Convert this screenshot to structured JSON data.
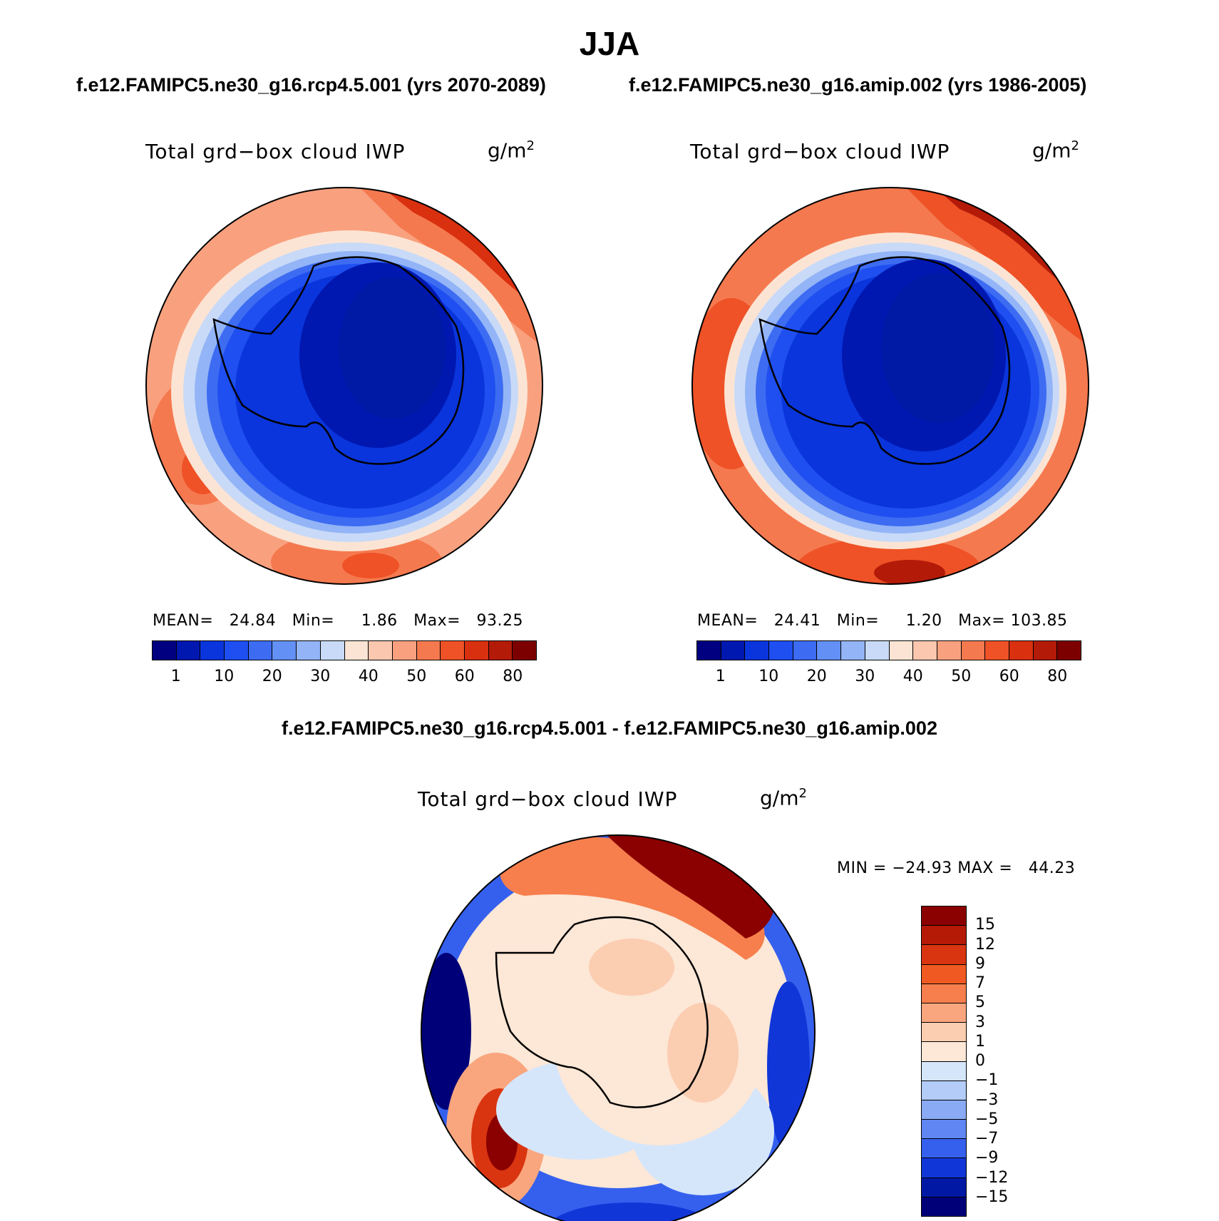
{
  "title": "JJA",
  "panels": [
    {
      "case_title": "f.e12.FAMIPC5.ne30_g16.rcp4.5.001 (yrs 2070-2089)",
      "var_title": "Total grd−box cloud IWP",
      "units": "g/m",
      "units_sup": "2",
      "stats": "MEAN=   24.84   Min=     1.86   Max=   93.25",
      "labelbar": [
        "1",
        "10",
        "20",
        "30",
        "40",
        "50",
        "60",
        "80"
      ]
    },
    {
      "case_title": "f.e12.FAMIPC5.ne30_g16.amip.002 (yrs 1986-2005)",
      "var_title": "Total grd−box cloud IWP",
      "units": "g/m",
      "units_sup": "2",
      "stats": "MEAN=   24.41   Min=     1.20   Max= 103.85",
      "labelbar": [
        "1",
        "10",
        "20",
        "30",
        "40",
        "50",
        "60",
        "80"
      ]
    }
  ],
  "difference": {
    "title": "f.e12.FAMIPC5.ne30_g16.rcp4.5.001 - f.e12.FAMIPC5.ne30_g16.amip.002",
    "var_title": "Total grd−box cloud IWP",
    "units": "g/m",
    "units_sup": "2",
    "stats": "MIN = −24.93 MAX =   44.23",
    "labelbar": [
      "15",
      "12",
      "9",
      "7",
      "5",
      "3",
      "1",
      "0",
      "−1",
      "−3",
      "−5",
      "−7",
      "−9",
      "−12",
      "−15"
    ]
  },
  "colors": {
    "abs_scale": [
      "#000080",
      "#0018b0",
      "#0a35dc",
      "#1f4ff0",
      "#3d6cf2",
      "#6390f4",
      "#93b4f6",
      "#c8daf7",
      "#fce4d4",
      "#fbc7ae",
      "#f9a17e",
      "#f5794f",
      "#ee5226",
      "#d9300f",
      "#b41a08",
      "#7d0000"
    ],
    "diff_scale": [
      "#8b0000",
      "#b51a06",
      "#d93510",
      "#f05a22",
      "#f67f4d",
      "#f9a67e",
      "#fbcdb1",
      "#fde7d6",
      "#d5e6fb",
      "#b3ccf8",
      "#8aaaf5",
      "#5f86f2",
      "#3560ee",
      "#1136d8",
      "#0018a4",
      "#000078"
    ],
    "ocean_blue": "#1f4ff0",
    "land_blue": "#0a35dc",
    "deep_blue": "#0018b0"
  }
}
